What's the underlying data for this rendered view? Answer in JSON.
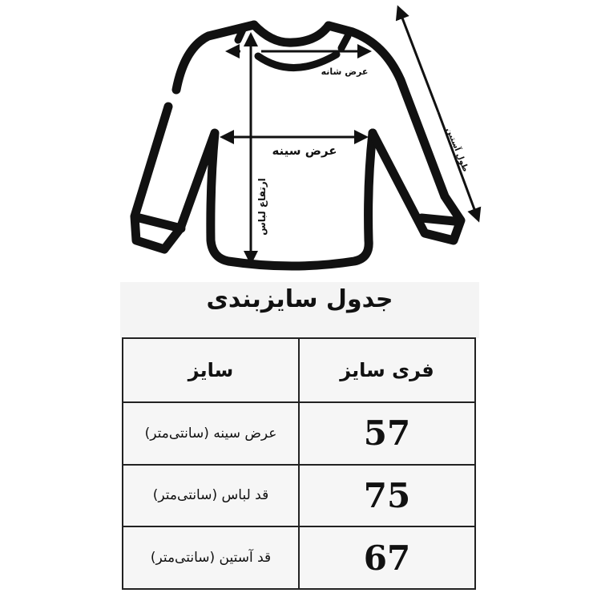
{
  "diagram": {
    "labels": {
      "shoulder_width": "عرض شانه",
      "chest_width": "عرض سینه",
      "garment_length": "ارتفاع لباس",
      "sleeve_length": "طول آستین"
    }
  },
  "size_chart": {
    "title": "جدول سایزبندی",
    "headers": [
      "سایز",
      "فری سایز"
    ],
    "rows": [
      {
        "label": "عرض سینه (سانتی‌متر)",
        "value": "57"
      },
      {
        "label": "قد لباس (سانتی‌متر)",
        "value": "75"
      },
      {
        "label": "قد آستین (سانتی‌متر)",
        "value": "67"
      }
    ]
  }
}
